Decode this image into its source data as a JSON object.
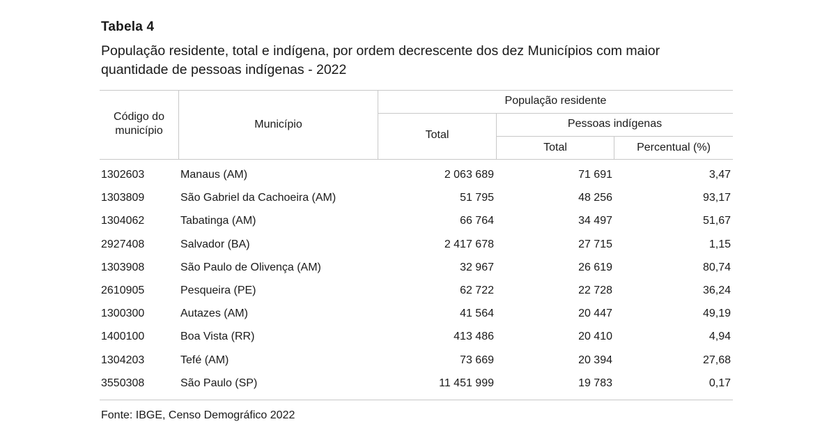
{
  "table_label": "Tabela 4",
  "caption": "População residente, total e indígena, por ordem decrescente dos dez Municípios com maior quantidade de pessoas indígenas - 2022",
  "headers": {
    "codigo": "Código do município",
    "municipio": "Município",
    "populacao_residente": "População residente",
    "total": "Total",
    "pessoas_indigenas": "Pessoas indígenas",
    "indigenas_total": "Total",
    "percentual": "Percentual (%)"
  },
  "rows": [
    {
      "codigo": "1302603",
      "municipio": "Manaus (AM)",
      "total": "2 063 689",
      "indigenas": "71 691",
      "percentual": "3,47"
    },
    {
      "codigo": "1303809",
      "municipio": "São Gabriel da Cachoeira (AM)",
      "total": "51 795",
      "indigenas": "48 256",
      "percentual": "93,17"
    },
    {
      "codigo": "1304062",
      "municipio": "Tabatinga (AM)",
      "total": "66 764",
      "indigenas": "34 497",
      "percentual": "51,67"
    },
    {
      "codigo": "2927408",
      "municipio": "Salvador (BA)",
      "total": "2 417 678",
      "indigenas": "27 715",
      "percentual": "1,15"
    },
    {
      "codigo": "1303908",
      "municipio": "São Paulo de Olivença (AM)",
      "total": "32 967",
      "indigenas": "26 619",
      "percentual": "80,74"
    },
    {
      "codigo": "2610905",
      "municipio": "Pesqueira (PE)",
      "total": "62 722",
      "indigenas": "22 728",
      "percentual": "36,24"
    },
    {
      "codigo": "1300300",
      "municipio": "Autazes (AM)",
      "total": "41 564",
      "indigenas": "20 447",
      "percentual": "49,19"
    },
    {
      "codigo": "1400100",
      "municipio": "Boa Vista (RR)",
      "total": "413 486",
      "indigenas": "20 410",
      "percentual": "4,94"
    },
    {
      "codigo": "1304203",
      "municipio": "Tefé (AM)",
      "total": "73 669",
      "indigenas": "20 394",
      "percentual": "27,68"
    },
    {
      "codigo": "3550308",
      "municipio": "São Paulo (SP)",
      "total": "11 451 999",
      "indigenas": "19 783",
      "percentual": "0,17"
    }
  ],
  "source": "Fonte: IBGE, Censo Demográfico 2022"
}
